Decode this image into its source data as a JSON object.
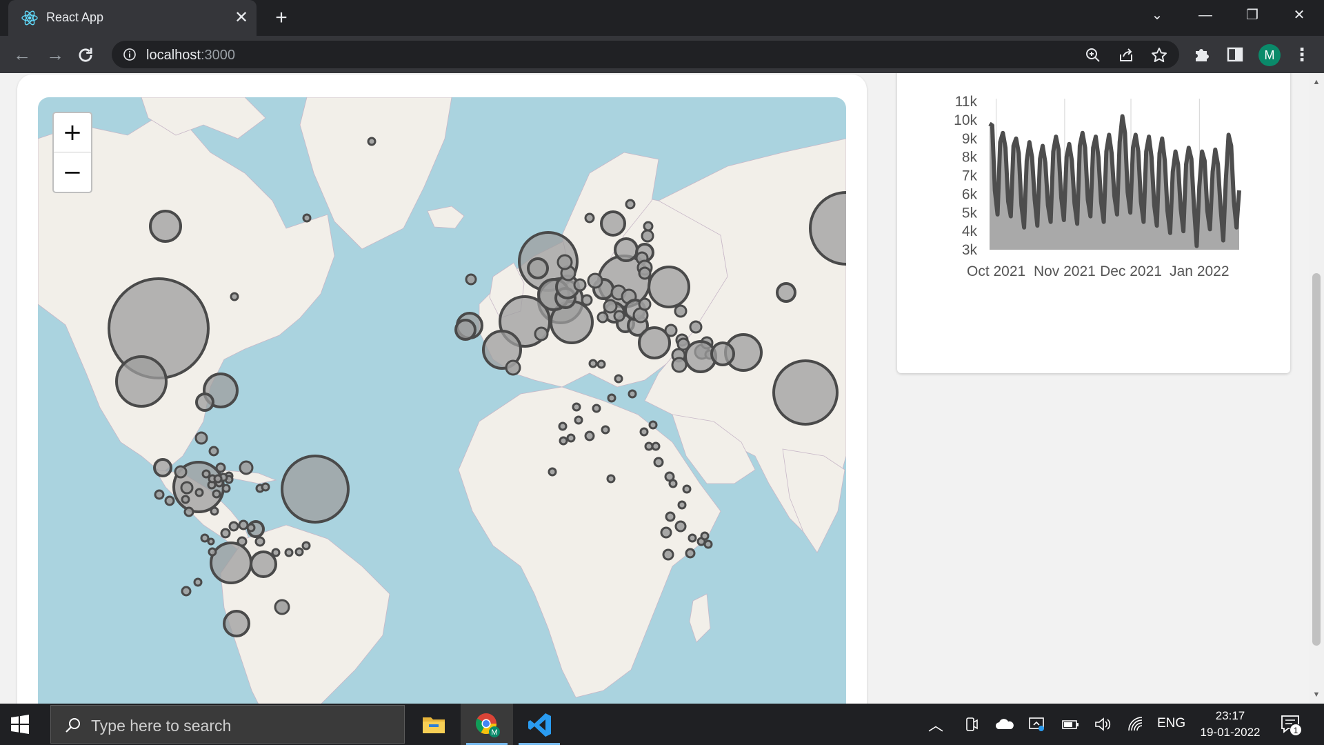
{
  "browser": {
    "tab_title": "React App",
    "url_host": "localhost",
    "url_port": ":3000",
    "icons": [
      "react-icon",
      "close-icon",
      "plus-icon",
      "chevron-down-icon",
      "minimize-icon",
      "restore-icon",
      "window-close-icon",
      "back-arrow-icon",
      "forward-arrow-icon",
      "reload-icon",
      "info-icon",
      "zoom-icon",
      "share-icon",
      "star-icon",
      "puzzle-icon",
      "sidepanel-icon",
      "kebab-icon"
    ],
    "profile_initial": "M"
  },
  "map": {
    "zoom_in_label": "+",
    "zoom_out_label": "−",
    "ocean_color": "#aad3df",
    "land_color": "#f2efe9",
    "bubble_fill": "#9e9e9e",
    "bubble_stroke": "#4a4a4a"
  },
  "chart_data": {
    "type": "area",
    "x_ticks": [
      "Oct 2021",
      "Nov 2021",
      "Dec 2021",
      "Jan 2022"
    ],
    "y_ticks": [
      "3k",
      "4k",
      "5k",
      "6k",
      "7k",
      "8k",
      "9k",
      "10k",
      "11k"
    ],
    "ylim": [
      3000,
      11000
    ],
    "x_range": [
      "2021-09-28",
      "2022-01-19"
    ],
    "grid": "vertical",
    "values": [
      9800,
      9700,
      6200,
      4900,
      8800,
      9300,
      8500,
      5600,
      4800,
      8600,
      9000,
      8200,
      5400,
      4200,
      7800,
      8800,
      8000,
      5700,
      4300,
      7900,
      8600,
      7700,
      5400,
      4500,
      8300,
      9100,
      8400,
      5800,
      4600,
      8000,
      8700,
      7800,
      5500,
      4400,
      8600,
      9300,
      8500,
      5700,
      4800,
      8500,
      9100,
      8000,
      5600,
      4500,
      8300,
      9200,
      8200,
      5900,
      4900,
      8800,
      10200,
      9300,
      6100,
      5000,
      8500,
      9200,
      8300,
      5600,
      4500,
      8300,
      9100,
      8000,
      5400,
      4300,
      8200,
      9000,
      7800,
      5100,
      3900,
      7200,
      8300,
      7600,
      5200,
      4000,
      7600,
      8500,
      7900,
      5300,
      3200,
      6400,
      8300,
      7800,
      5100,
      4100,
      7200,
      8400,
      7600,
      5300,
      3500,
      6800,
      9200,
      8600,
      5600,
      4200,
      6200
    ],
    "fill_color": "#a9a9a9",
    "line_color": "#4d4d4d"
  },
  "taskbar": {
    "search_placeholder": "Type here to search",
    "language": "ENG",
    "time": "23:17",
    "date": "19-01-2022",
    "notification_count": "1",
    "icons": [
      "windows-start-icon",
      "search-icon",
      "file-explorer-icon",
      "chrome-icon",
      "vscode-icon",
      "chevron-up-icon",
      "meet-now-icon",
      "onedrive-icon",
      "display-icon",
      "battery-icon",
      "volume-icon",
      "wifi-icon",
      "notification-icon"
    ]
  }
}
